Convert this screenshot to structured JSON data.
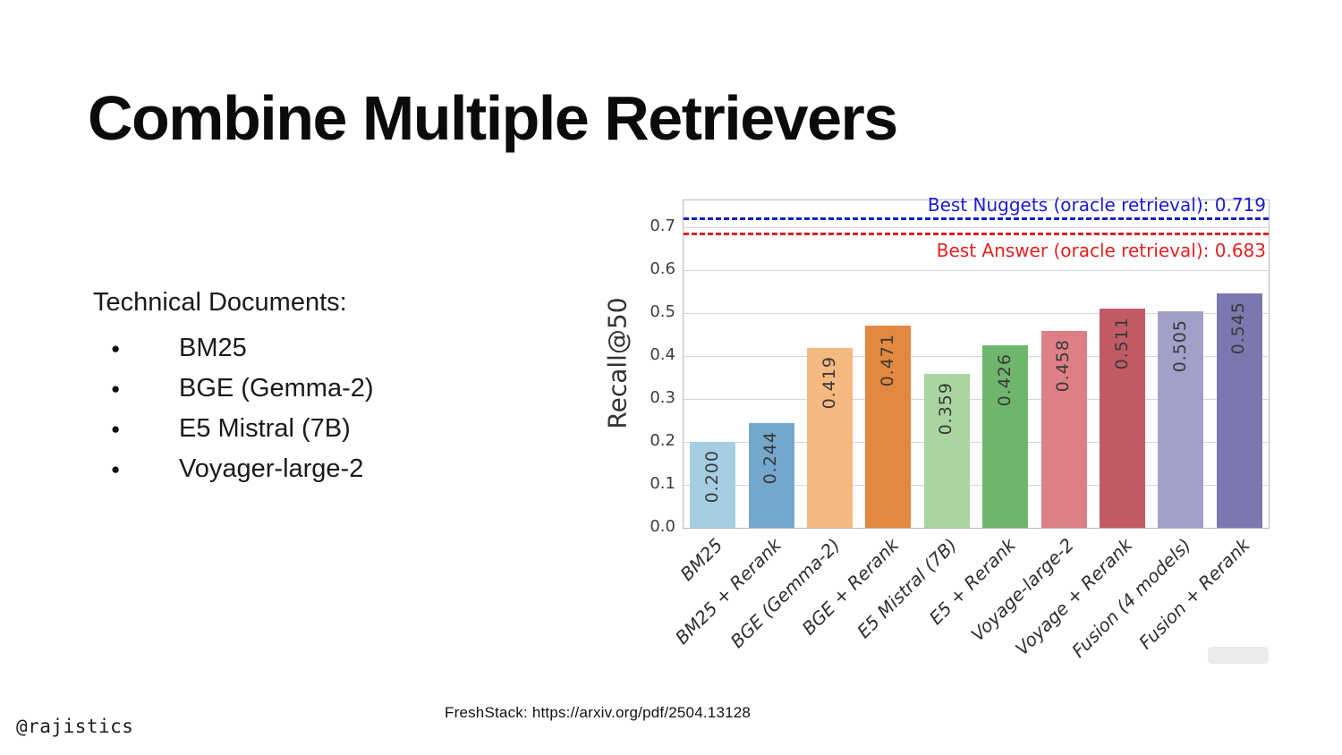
{
  "slide": {
    "title": "Combine Multiple Retrievers",
    "footer": "FreshStack: https://arxiv.org/pdf/2504.13128",
    "watermark": "@rajistics"
  },
  "list": {
    "heading": "Technical Documents:",
    "bullet_glyph": "●",
    "items": [
      "BM25",
      "BGE (Gemma-2)",
      "E5 Mistral (7B)",
      "Voyager-large-2"
    ]
  },
  "chart_data": {
    "type": "bar",
    "title": "",
    "xlabel": "",
    "ylabel": "Recall@50",
    "categories": [
      "BM25",
      "BM25 + Rerank",
      "BGE (Gemma-2)",
      "BGE + Rerank",
      "E5 Mistral (7B)",
      "E5 + Rerank",
      "Voyage-large-2",
      "Voyage + Rerank",
      "Fusion (4 models)",
      "Fusion + Rerank"
    ],
    "values": [
      0.2,
      0.244,
      0.419,
      0.471,
      0.359,
      0.426,
      0.458,
      0.511,
      0.505,
      0.545
    ],
    "value_labels": [
      "0.200",
      "0.244",
      "0.419",
      "0.471",
      "0.359",
      "0.426",
      "0.458",
      "0.511",
      "0.505",
      "0.545"
    ],
    "bar_colors": [
      "#a6cee3",
      "#74a7cc",
      "#f5b97f",
      "#e3893f",
      "#a9d6a0",
      "#6fb66c",
      "#dd8085",
      "#c25b66",
      "#a29fc9",
      "#7b78b0"
    ],
    "yticks": [
      0.0,
      0.1,
      0.2,
      0.3,
      0.4,
      0.5,
      0.6,
      0.7
    ],
    "ylim": [
      0,
      0.7625
    ],
    "grid": true,
    "legend_position": "none",
    "annotations": [
      {
        "label": "Best Nuggets (oracle retrieval): 0.719",
        "value": 0.719,
        "color": "#1c1ccd",
        "label_position": "above"
      },
      {
        "label": "Best Answer (oracle retrieval): 0.683",
        "value": 0.683,
        "color": "#e32020",
        "label_position": "below"
      }
    ]
  }
}
